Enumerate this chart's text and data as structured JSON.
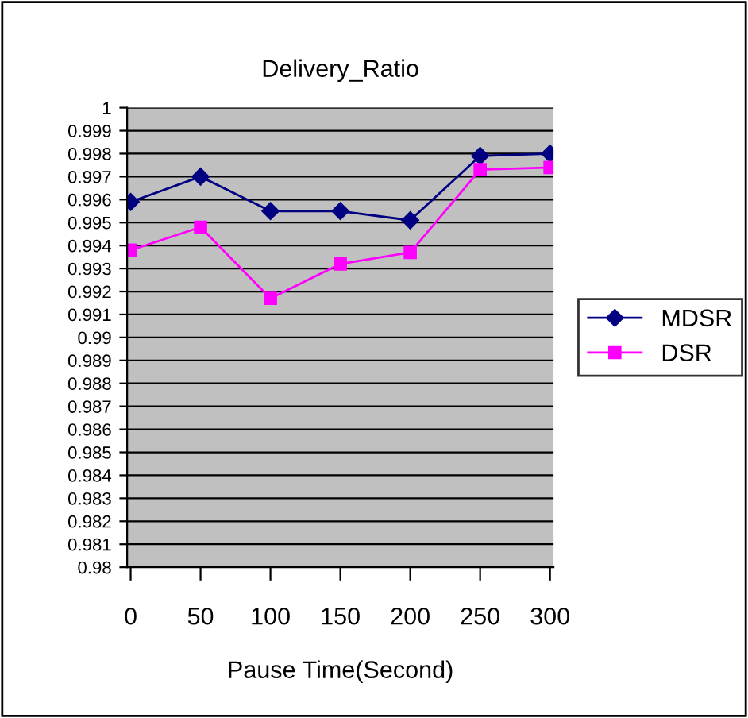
{
  "chart_data": {
    "type": "line",
    "title": "Delivery_Ratio",
    "xlabel": "Pause Time(Second)",
    "categories": [
      "0",
      "50",
      "100",
      "150",
      "200",
      "250",
      "300"
    ],
    "series": [
      {
        "name": "MDSR",
        "color": "#000080",
        "marker": "diamond",
        "values": [
          0.9959,
          0.997,
          0.9955,
          0.9955,
          0.9951,
          0.9979,
          0.998
        ]
      },
      {
        "name": "DSR",
        "color": "#ff00ff",
        "marker": "square",
        "values": [
          0.9938,
          0.9948,
          0.9917,
          0.9932,
          0.9937,
          0.9973,
          0.9974
        ]
      }
    ],
    "ylim": [
      0.98,
      1
    ],
    "yticks": [
      0.98,
      0.981,
      0.982,
      0.983,
      0.984,
      0.985,
      0.986,
      0.987,
      0.988,
      0.989,
      0.99,
      0.991,
      0.992,
      0.993,
      0.994,
      0.995,
      0.996,
      0.997,
      0.998,
      0.999,
      1
    ],
    "grid": "y",
    "legend": "right"
  }
}
